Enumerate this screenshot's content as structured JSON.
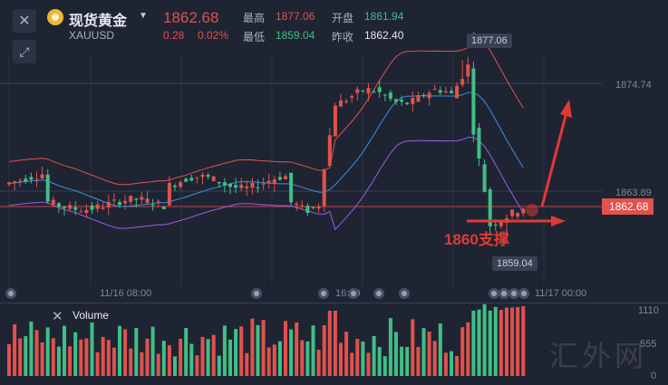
{
  "header": {
    "instrument_name": "现货黄金",
    "symbol": "XAUUSD",
    "last_price": "1862.68",
    "change": "0.28",
    "change_pct": "0.02%",
    "high_label": "最高",
    "high_value": "1877.06",
    "low_label": "最低",
    "low_value": "1859.04",
    "open_label": "开盘",
    "open_value": "1861.94",
    "prev_close_label": "昨收",
    "prev_close_value": "1862.40"
  },
  "colors": {
    "up": "#e0524d",
    "down": "#3fbf86",
    "ma": "#3a8fe0",
    "upper_band": "#e0524d",
    "lower_band": "#9a5ee6",
    "annotation": "#e03a35"
  },
  "icons": {
    "close": "close-icon",
    "expand": "expand-arrows-icon",
    "dropdown": "chevron-down-icon",
    "coin": "gold-coin-icon"
  },
  "annotation": {
    "text": "1860支撑"
  },
  "chart_data": [
    {
      "type": "candlestick",
      "title": "",
      "xlabel": "",
      "ylabel": "",
      "x_ticks": [
        "11/16 08:00",
        "16:00",
        "11/17 00:00"
      ],
      "y_ticks": [
        "1874.74",
        "1863.89"
      ],
      "ylim": [
        1855.3,
        1880.4
      ],
      "last_price_label": "1862.68",
      "high_marker": "1877.06",
      "low_marker": "1859.04",
      "bollinger": true,
      "grid": true
    },
    {
      "type": "bar",
      "title": "Volume",
      "y_ticks": [
        "1110",
        "555",
        "0"
      ],
      "ylim": [
        0,
        1110
      ]
    }
  ],
  "watermark": "汇外网"
}
